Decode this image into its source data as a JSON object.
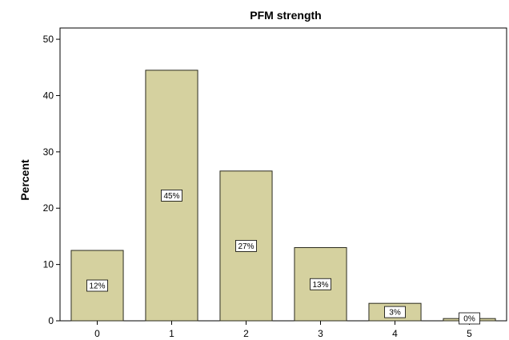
{
  "chart_data": {
    "type": "bar",
    "title": "PFM strength",
    "xlabel": "",
    "ylabel": "Percent",
    "categories": [
      "0",
      "1",
      "2",
      "3",
      "4",
      "5"
    ],
    "values": [
      12.5,
      44.5,
      26.6,
      13.0,
      3.1,
      0.4
    ],
    "data_labels": [
      "12%",
      "45%",
      "27%",
      "13%",
      "3%",
      "0%"
    ],
    "ylim": [
      0,
      52
    ],
    "yticks": [
      "0",
      "10",
      "20",
      "30",
      "40",
      "50"
    ],
    "grid": false,
    "legend": "none",
    "bar_color": "#d5d19f",
    "bar_edge_color": "#2b2b1e"
  }
}
